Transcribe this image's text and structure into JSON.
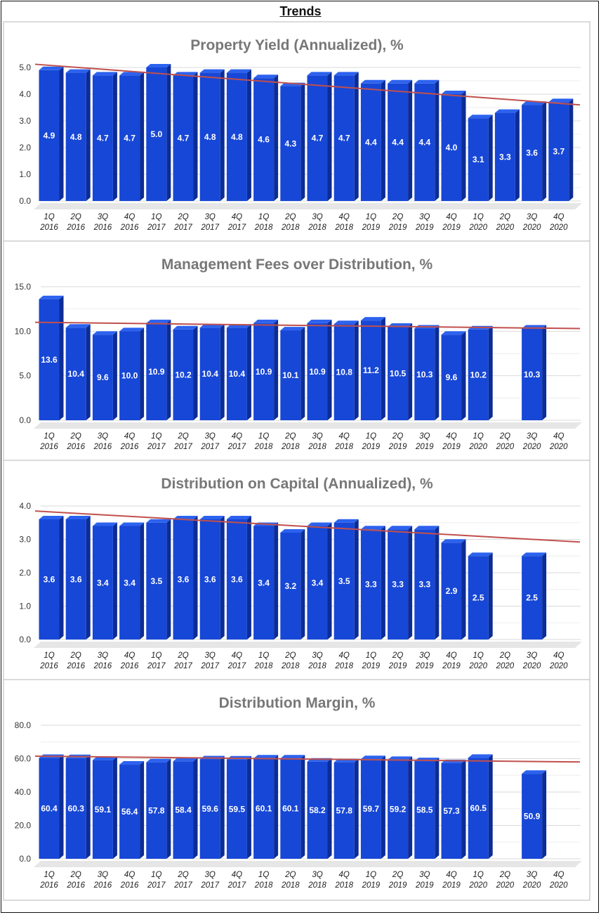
{
  "page": {
    "title": "Trends"
  },
  "colors": {
    "bar": "#1747d6",
    "bar_top": "#2c62ee",
    "bar_side": "#0c2c96",
    "trend": "#c0504d",
    "grid": "#d9d9d9",
    "title": "#777777",
    "border": "#b7b7b7"
  },
  "chart_data": [
    {
      "type": "bar",
      "title": "Property Yield (Annualized), %",
      "categories": [
        "1Q 2016",
        "2Q 2016",
        "3Q 2016",
        "4Q 2016",
        "1Q 2017",
        "2Q 2017",
        "3Q 2017",
        "4Q 2017",
        "1Q 2018",
        "2Q 2018",
        "3Q 2018",
        "4Q 2018",
        "1Q 2019",
        "2Q 2019",
        "3Q 2019",
        "4Q 2019",
        "1Q 2020",
        "2Q 2020",
        "3Q 2020",
        "4Q 2020"
      ],
      "values": [
        4.9,
        4.8,
        4.7,
        4.7,
        5.0,
        4.7,
        4.8,
        4.8,
        4.6,
        4.3,
        4.7,
        4.7,
        4.4,
        4.4,
        4.4,
        4.0,
        3.1,
        3.3,
        3.6,
        3.7
      ],
      "yticks": [
        "0.0",
        "1.0",
        "2.0",
        "3.0",
        "4.0",
        "5.0"
      ],
      "ylim": [
        0,
        5
      ],
      "trendline": [
        5.12,
        3.6
      ],
      "xlabel": "",
      "ylabel": ""
    },
    {
      "type": "bar",
      "title": "Management Fees over Distribution, %",
      "categories": [
        "1Q 2016",
        "2Q 2016",
        "3Q 2016",
        "4Q 2016",
        "1Q 2017",
        "2Q 2017",
        "3Q 2017",
        "4Q 2017",
        "1Q 2018",
        "2Q 2018",
        "3Q 2018",
        "4Q 2018",
        "1Q 2019",
        "2Q 2019",
        "3Q 2019",
        "4Q 2019",
        "1Q 2020",
        "2Q 2020",
        "3Q 2020",
        "4Q 2020"
      ],
      "values": [
        13.6,
        10.4,
        9.6,
        10.0,
        10.9,
        10.2,
        10.4,
        10.4,
        10.9,
        10.1,
        10.9,
        10.8,
        11.2,
        10.5,
        10.3,
        9.6,
        10.2,
        null,
        10.3,
        null
      ],
      "yticks": [
        "0.0",
        "5.0",
        "10.0",
        "15.0"
      ],
      "ylim": [
        0,
        15
      ],
      "trendline": [
        11.0,
        10.3
      ],
      "xlabel": "",
      "ylabel": ""
    },
    {
      "type": "bar",
      "title": "Distribution on Capital (Annualized), %",
      "categories": [
        "1Q 2016",
        "2Q 2016",
        "3Q 2016",
        "4Q 2016",
        "1Q 2017",
        "2Q 2017",
        "3Q 2017",
        "4Q 2017",
        "1Q 2018",
        "2Q 2018",
        "3Q 2018",
        "4Q 2018",
        "1Q 2019",
        "2Q 2019",
        "3Q 2019",
        "4Q 2019",
        "1Q 2020",
        "2Q 2020",
        "3Q 2020",
        "4Q 2020"
      ],
      "values": [
        3.6,
        3.6,
        3.4,
        3.4,
        3.5,
        3.6,
        3.6,
        3.6,
        3.4,
        3.2,
        3.4,
        3.5,
        3.3,
        3.3,
        3.3,
        2.9,
        2.5,
        null,
        2.5,
        null
      ],
      "yticks": [
        "0.0",
        "1.0",
        "2.0",
        "3.0",
        "4.0"
      ],
      "ylim": [
        0,
        4
      ],
      "trendline": [
        3.85,
        2.92
      ],
      "xlabel": "",
      "ylabel": ""
    },
    {
      "type": "bar",
      "title": "Distribution Margin, %",
      "categories": [
        "1Q 2016",
        "2Q 2016",
        "3Q 2016",
        "4Q 2016",
        "1Q 2017",
        "2Q 2017",
        "3Q 2017",
        "4Q 2017",
        "1Q 2018",
        "2Q 2018",
        "3Q 2018",
        "4Q 2018",
        "1Q 2019",
        "2Q 2019",
        "3Q 2019",
        "4Q 2019",
        "1Q 2020",
        "2Q 2020",
        "3Q 2020",
        "4Q 2020"
      ],
      "values": [
        60.4,
        60.3,
        59.1,
        56.4,
        57.8,
        58.4,
        59.6,
        59.5,
        60.1,
        60.1,
        58.2,
        57.8,
        59.7,
        59.2,
        58.5,
        57.3,
        60.5,
        null,
        50.9,
        null
      ],
      "yticks": [
        "0.0",
        "20.0",
        "40.0",
        "60.0",
        "80.0"
      ],
      "ylim": [
        0,
        80
      ],
      "trendline": [
        61.5,
        58.0
      ],
      "xlabel": "",
      "ylabel": ""
    }
  ]
}
